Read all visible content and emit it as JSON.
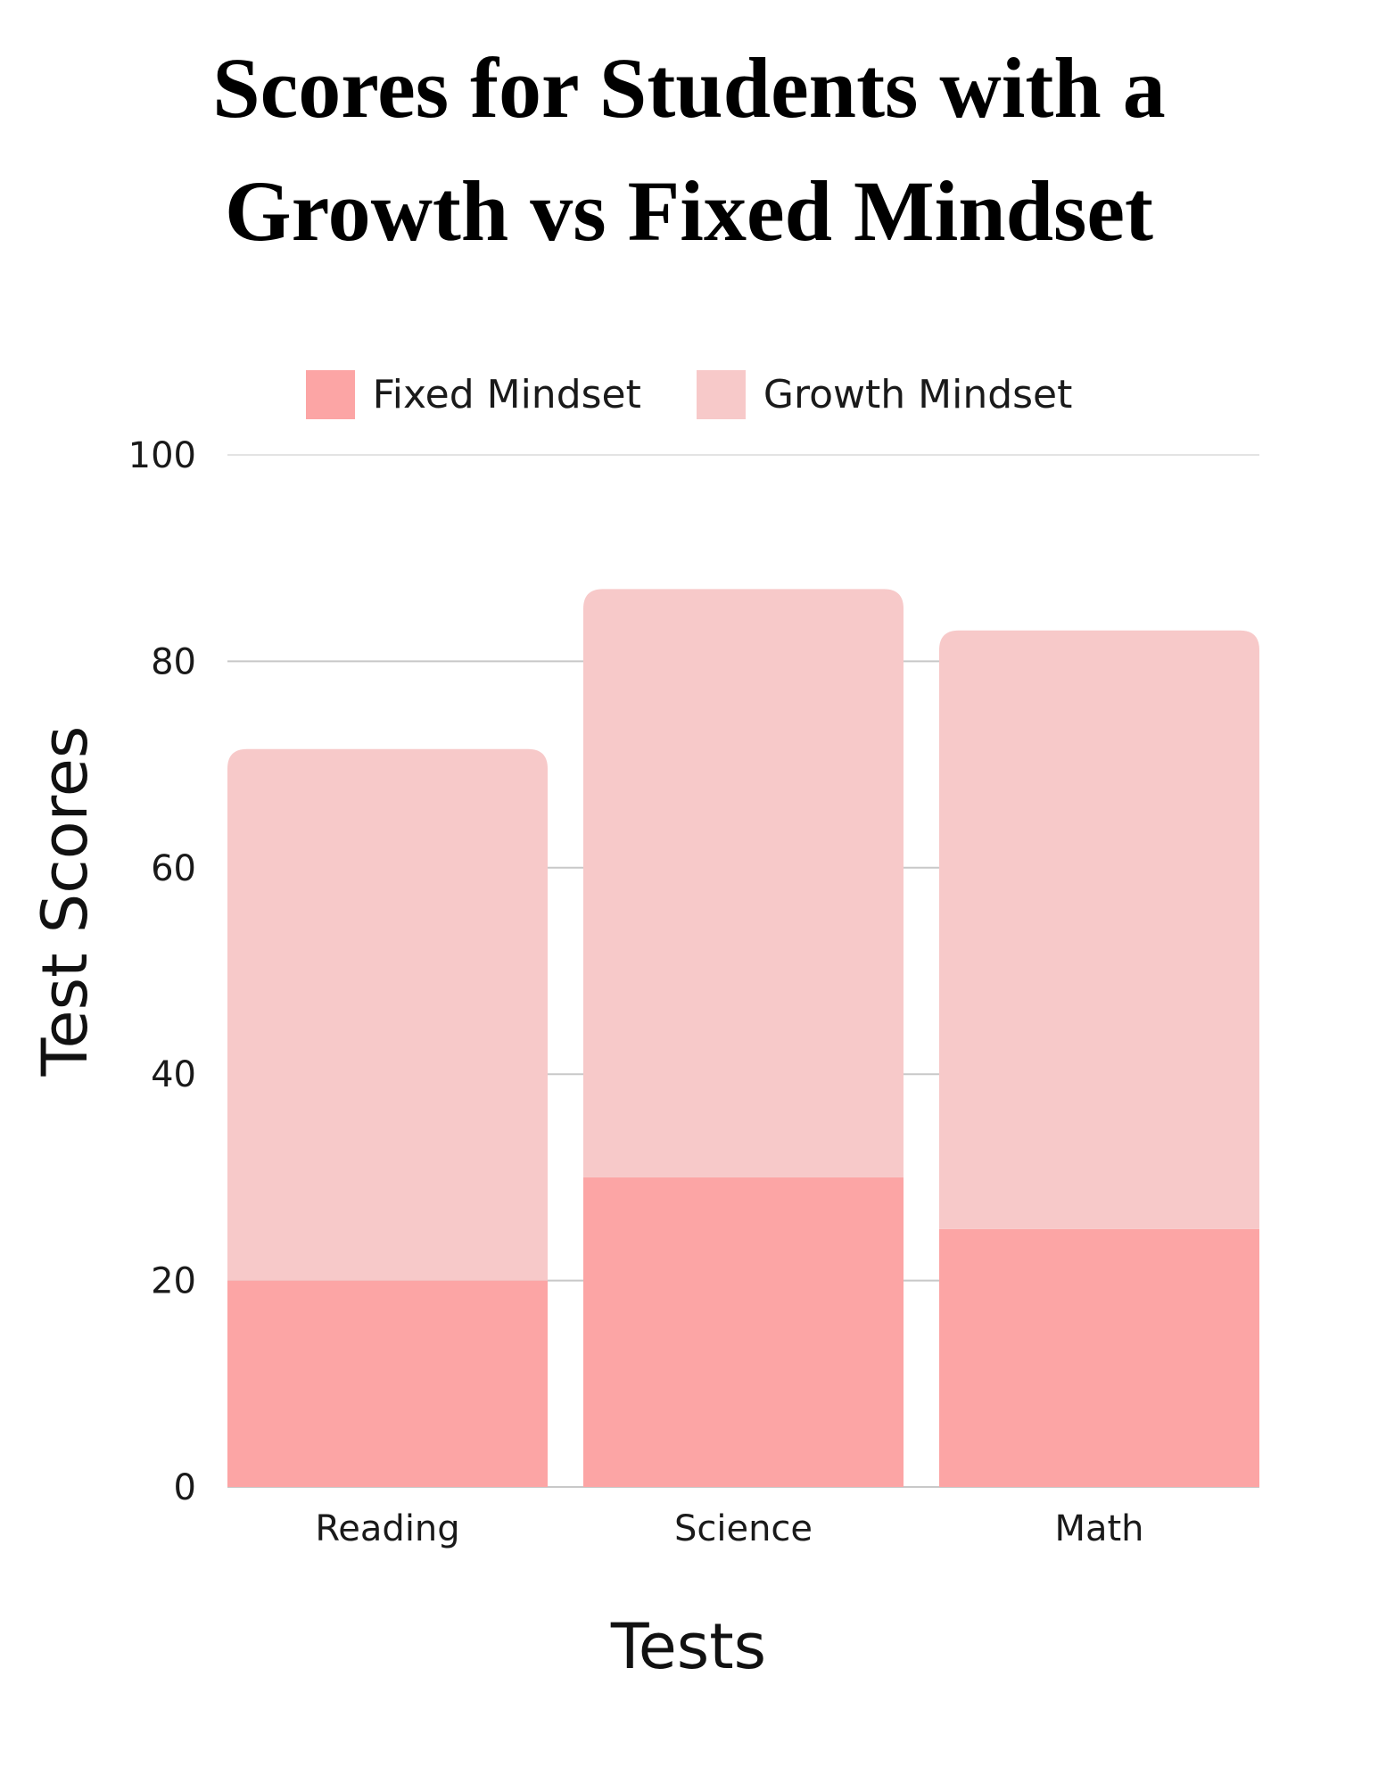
{
  "chart_data": {
    "type": "bar",
    "stacked": true,
    "title_lines": [
      "Scores for Students with a",
      "Growth vs Fixed Mindset"
    ],
    "xlabel": "Tests",
    "ylabel": "Test Scores",
    "categories": [
      "Reading",
      "Science",
      "Math"
    ],
    "series": [
      {
        "name": "Fixed Mindset",
        "color": "#fca5a5",
        "values": [
          20,
          30,
          25
        ]
      },
      {
        "name": "Growth Mindset",
        "color": "#f7c9c9",
        "values": [
          51.5,
          57,
          58
        ]
      }
    ],
    "ylim": [
      0,
      100
    ],
    "yticks": [
      0,
      20,
      40,
      60,
      80,
      100
    ],
    "grid": true,
    "legend_position": "top"
  }
}
